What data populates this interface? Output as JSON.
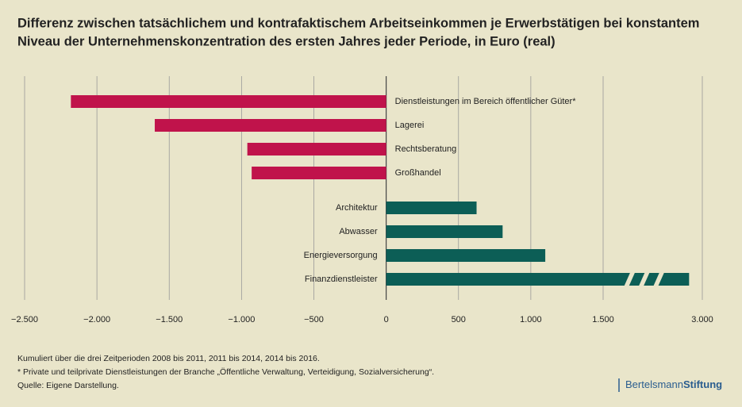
{
  "chart_data": {
    "type": "barh",
    "title": "Differenz zwischen tatsächlichem und kontrafaktischem Arbeitseinkommen je Erwerbstätigen bei konstantem",
    "subtitle": "Niveau der Unternehmenskonzentration des ersten Jahres jeder Periode, in Euro (real)",
    "categories": [
      "Dienstleistungen im Bereich öffentlicher Güter*",
      "Lagerei",
      "Rechtsberatung",
      "Großhandel",
      "Architektur",
      "Abwasser",
      "Energieversorgung",
      "Finanzdienstleister"
    ],
    "values": [
      -2180,
      -1600,
      -960,
      -930,
      625,
      805,
      1100,
      2800
    ],
    "colors": [
      "#c0134b",
      "#c0134b",
      "#c0134b",
      "#c0134b",
      "#0c5e56",
      "#0c5e56",
      "#0c5e56",
      "#0c5e56"
    ],
    "xlim": [
      -2500,
      3000
    ],
    "xticks": [
      {
        "value": -2500,
        "label": "−2.500"
      },
      {
        "value": -2000,
        "label": "−2.000"
      },
      {
        "value": -1500,
        "label": "−1.500"
      },
      {
        "value": -1000,
        "label": "−1.000"
      },
      {
        "value": -500,
        "label": "−500"
      },
      0,
      500,
      {
        "value": 1000,
        "label": "1.000"
      },
      {
        "value": 1500,
        "label": "1.500"
      },
      {
        "value": 3000,
        "label": "3.000"
      }
    ],
    "axis_break": true,
    "grid": true,
    "notes": [
      "Kumuliert über die drei Zeitperioden 2008 bis 2011, 2011 bis 2014, 2014 bis 2016.",
      "* Private und teilprivate Dienstleistungen der Branche „Öffentliche Verwaltung, Verteidigung, Sozialversicherung“.",
      "Quelle: Eigene Darstellung."
    ],
    "logo": [
      "Bertelsmann",
      "Stiftung"
    ]
  }
}
